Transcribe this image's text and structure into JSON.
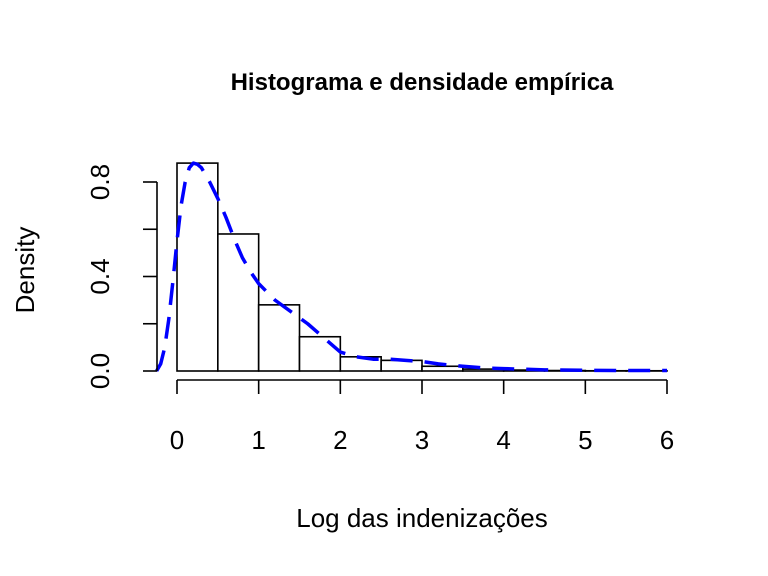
{
  "chart_data": {
    "type": "bar",
    "subtype": "histogram-with-density",
    "title": "Histograma e densidade empírica",
    "xlabel": "Log das indenizações",
    "ylabel": "Density",
    "xlim": [
      0,
      6
    ],
    "ylim": [
      0,
      0.9
    ],
    "x_ticks": [
      0,
      1,
      2,
      3,
      4,
      5,
      6
    ],
    "y_ticks": [
      0.0,
      0.4,
      0.8
    ],
    "y_tick_labels": [
      "0.0",
      "0.4",
      "0.8"
    ],
    "bins": [
      {
        "x0": 0.0,
        "x1": 0.5,
        "density": 0.88
      },
      {
        "x0": 0.5,
        "x1": 1.0,
        "density": 0.58
      },
      {
        "x0": 1.0,
        "x1": 1.5,
        "density": 0.28
      },
      {
        "x0": 1.5,
        "x1": 2.0,
        "density": 0.145
      },
      {
        "x0": 2.0,
        "x1": 2.5,
        "density": 0.06
      },
      {
        "x0": 2.5,
        "x1": 3.0,
        "density": 0.045
      },
      {
        "x0": 3.0,
        "x1": 3.5,
        "density": 0.02
      },
      {
        "x0": 3.5,
        "x1": 4.0,
        "density": 0.008
      },
      {
        "x0": 4.0,
        "x1": 4.5,
        "density": 0.004
      },
      {
        "x0": 4.5,
        "x1": 5.0,
        "density": 0.002
      },
      {
        "x0": 5.0,
        "x1": 5.5,
        "density": 0.001
      },
      {
        "x0": 5.5,
        "x1": 6.0,
        "density": 0.001
      }
    ],
    "series": [
      {
        "style": "dashed",
        "color": "#0000ff",
        "x": [
          -0.25,
          -0.2,
          -0.15,
          -0.1,
          -0.05,
          0.0,
          0.05,
          0.1,
          0.15,
          0.2,
          0.25,
          0.3,
          0.35,
          0.4,
          0.5,
          0.6,
          0.7,
          0.8,
          0.9,
          1.0,
          1.2,
          1.4,
          1.6,
          1.8,
          2.0,
          2.2,
          2.4,
          2.6,
          2.8,
          3.0,
          3.2,
          3.5,
          3.8,
          4.0,
          4.5,
          5.0,
          5.5,
          6.0
        ],
        "y": [
          0.0,
          0.03,
          0.1,
          0.22,
          0.38,
          0.55,
          0.7,
          0.8,
          0.86,
          0.88,
          0.875,
          0.86,
          0.83,
          0.8,
          0.73,
          0.65,
          0.56,
          0.48,
          0.42,
          0.37,
          0.3,
          0.25,
          0.2,
          0.14,
          0.08,
          0.06,
          0.05,
          0.05,
          0.045,
          0.04,
          0.03,
          0.02,
          0.012,
          0.01,
          0.005,
          0.003,
          0.002,
          0.002
        ]
      }
    ],
    "grid": false,
    "legend": "none"
  }
}
